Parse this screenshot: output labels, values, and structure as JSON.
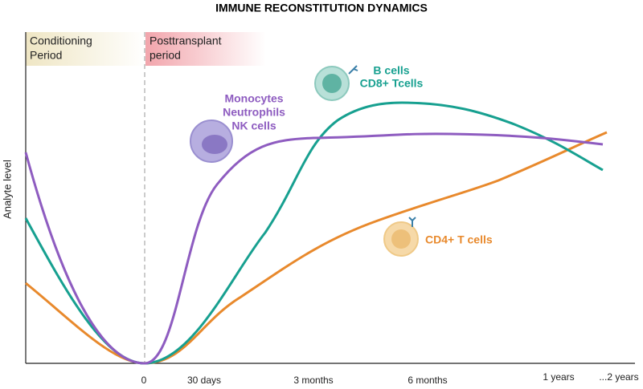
{
  "title": "IMMUNE RECONSTITUTION DYNAMICS",
  "y_axis_label": "Analyte level",
  "phases": [
    {
      "lines": [
        "Conditioning",
        "Period"
      ]
    },
    {
      "lines": [
        "Posttransplant",
        "period"
      ]
    }
  ],
  "x_ticks": [
    "0",
    "30 days",
    "3 months",
    "6 months",
    "1 years",
    "...2 years"
  ],
  "curve_labels": {
    "innate": [
      "Monocytes",
      "Neutrophils",
      "NK cells"
    ],
    "b_cd8": [
      "B cells",
      "CD8+ Tcells"
    ],
    "cd4": [
      "CD4+ T cells"
    ]
  }
}
